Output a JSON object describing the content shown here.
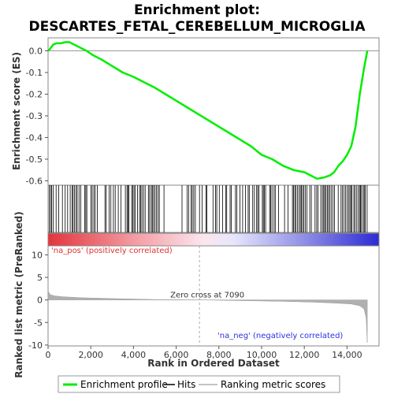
{
  "chart_data": {
    "type": "line",
    "title_line1": "Enrichment plot:",
    "title_line2": "DESCARTES_FETAL_CEREBELLUM_MICROGLIA",
    "es_ylabel": "Enrichment score (ES)",
    "metric_ylabel": "Ranked list metric (PreRanked)",
    "xlabel": "Rank in Ordered Dataset",
    "xlim": [
      0,
      15500
    ],
    "x_ticks": [
      0,
      2000,
      4000,
      6000,
      8000,
      10000,
      12000,
      14000
    ],
    "x_tick_labels": [
      "0",
      "2,000",
      "4,000",
      "6,000",
      "8,000",
      "10,000",
      "12,000",
      "14,000"
    ],
    "es_ylim": [
      -0.62,
      0.06
    ],
    "es_ticks": [
      0.0,
      -0.1,
      -0.2,
      -0.3,
      -0.4,
      -0.5,
      -0.6
    ],
    "es_tick_labels": [
      "0.0",
      "-0.1",
      "-0.2",
      "-0.3",
      "-0.4",
      "-0.5",
      "-0.6"
    ],
    "metric_ylim": [
      -10.2,
      12
    ],
    "metric_ticks": [
      10,
      5,
      0,
      -5,
      -10
    ],
    "metric_tick_labels": [
      "10",
      "5",
      "0",
      "-5",
      "-10"
    ],
    "series": [
      {
        "name": "Enrichment profile",
        "color": "#00ee00",
        "x": [
          0,
          100,
          250,
          400,
          600,
          800,
          1000,
          1200,
          1500,
          1800,
          2100,
          2500,
          3000,
          3500,
          4000,
          4500,
          5000,
          5500,
          6000,
          6500,
          7000,
          7500,
          8000,
          8500,
          9000,
          9500,
          10000,
          10500,
          11000,
          11500,
          12000,
          12300,
          12600,
          12900,
          13200,
          13400,
          13600,
          13800,
          14000,
          14200,
          14400,
          14600,
          14800,
          14950
        ],
        "y": [
          0.0,
          0.01,
          0.03,
          0.035,
          0.035,
          0.04,
          0.04,
          0.03,
          0.015,
          0.0,
          -0.02,
          -0.04,
          -0.07,
          -0.1,
          -0.12,
          -0.145,
          -0.17,
          -0.2,
          -0.23,
          -0.26,
          -0.29,
          -0.32,
          -0.35,
          -0.38,
          -0.41,
          -0.44,
          -0.48,
          -0.5,
          -0.53,
          -0.55,
          -0.56,
          -0.575,
          -0.59,
          -0.585,
          -0.575,
          -0.56,
          -0.53,
          -0.51,
          -0.48,
          -0.44,
          -0.35,
          -0.2,
          -0.08,
          0.0
        ]
      },
      {
        "name": "Ranking metric scores",
        "color": "#b0b0b0",
        "x": [
          0,
          100,
          300,
          700,
          1500,
          3000,
          5000,
          7090,
          9000,
          11000,
          12500,
          13500,
          14200,
          14600,
          14800,
          14900,
          14950
        ],
        "y": [
          2.0,
          1.2,
          0.9,
          0.7,
          0.5,
          0.3,
          0.1,
          0.0,
          -0.15,
          -0.3,
          -0.5,
          -0.7,
          -0.9,
          -1.3,
          -2.0,
          -4.0,
          -9.5
        ]
      }
    ],
    "hits_label": "Hits",
    "hit_region_start": 50,
    "hit_region_end": 14950,
    "zero_cross": 7090,
    "zero_cross_label": "Zero cross at 7090",
    "pos_label": "'na_pos' (positively correlated)",
    "neg_label": "'na_neg' (negatively correlated)",
    "pos_color": "#e0303c",
    "neg_color": "#3a32d8",
    "legend_placement": "bottom",
    "grid": false
  }
}
